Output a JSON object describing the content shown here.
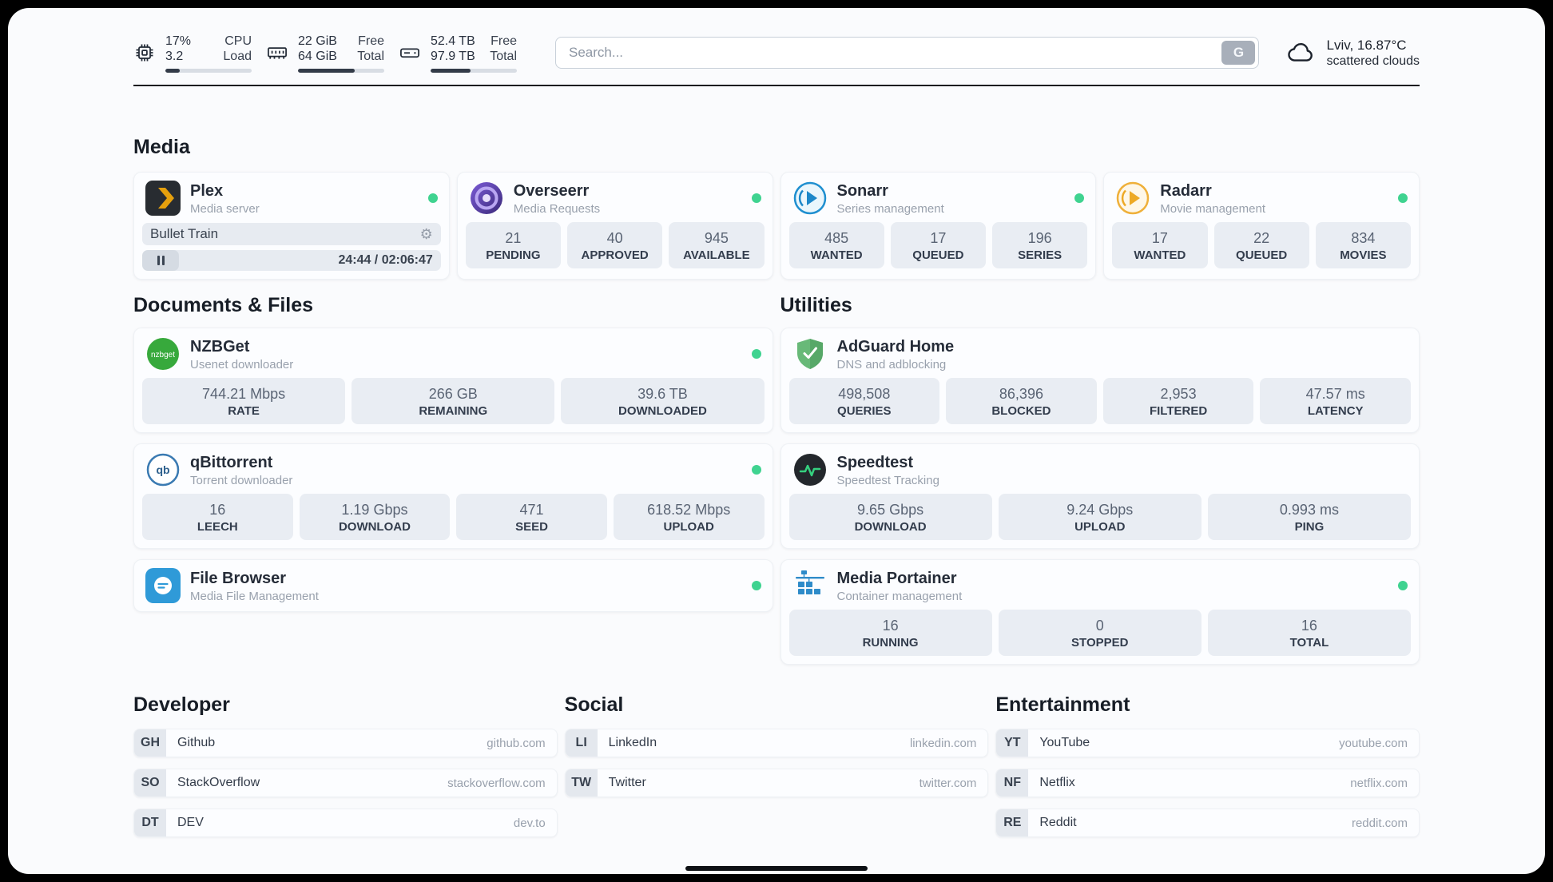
{
  "header": {
    "cpu": {
      "value1": "17%",
      "value2": "3.2",
      "label1": "CPU",
      "label2": "Load",
      "percent": 17
    },
    "ram": {
      "value1": "22 GiB",
      "value2": "64 GiB",
      "label1": "Free",
      "label2": "Total",
      "percent": 66
    },
    "disk": {
      "value1": "52.4 TB",
      "value2": "97.9 TB",
      "label1": "Free",
      "label2": "Total",
      "percent": 46
    },
    "search": {
      "placeholder": "Search...",
      "button_label": "G"
    },
    "weather": {
      "location_temp": "Lviv, 16.87°C",
      "condition": "scattered clouds"
    }
  },
  "media": {
    "title": "Media",
    "plex": {
      "name": "Plex",
      "sub": "Media server",
      "now_playing": "Bullet Train",
      "time": "24:44 / 02:06:47",
      "progress": 19.5
    },
    "apps": [
      {
        "name": "Overseerr",
        "sub": "Media Requests",
        "stats": [
          {
            "value": "21",
            "label": "PENDING"
          },
          {
            "value": "40",
            "label": "APPROVED"
          },
          {
            "value": "945",
            "label": "AVAILABLE"
          }
        ]
      },
      {
        "name": "Sonarr",
        "sub": "Series management",
        "stats": [
          {
            "value": "485",
            "label": "WANTED"
          },
          {
            "value": "17",
            "label": "QUEUED"
          },
          {
            "value": "196",
            "label": "SERIES"
          }
        ]
      },
      {
        "name": "Radarr",
        "sub": "Movie management",
        "stats": [
          {
            "value": "17",
            "label": "WANTED"
          },
          {
            "value": "22",
            "label": "QUEUED"
          },
          {
            "value": "834",
            "label": "MOVIES"
          }
        ]
      }
    ]
  },
  "documents": {
    "title": "Documents & Files",
    "nzbget": {
      "name": "NZBGet",
      "sub": "Usenet downloader",
      "stats": [
        {
          "value": "744.21 Mbps",
          "label": "RATE"
        },
        {
          "value": "266 GB",
          "label": "REMAINING"
        },
        {
          "value": "39.6 TB",
          "label": "DOWNLOADED"
        }
      ]
    },
    "qbittorrent": {
      "name": "qBittorrent",
      "sub": "Torrent downloader",
      "stats": [
        {
          "value": "16",
          "label": "LEECH"
        },
        {
          "value": "1.19 Gbps",
          "label": "DOWNLOAD"
        },
        {
          "value": "471",
          "label": "SEED"
        },
        {
          "value": "618.52 Mbps",
          "label": "UPLOAD"
        }
      ]
    },
    "filebrowser": {
      "name": "File Browser",
      "sub": "Media File Management"
    }
  },
  "utilities": {
    "title": "Utilities",
    "adguard": {
      "name": "AdGuard Home",
      "sub": "DNS and adblocking",
      "stats": [
        {
          "value": "498,508",
          "label": "QUERIES"
        },
        {
          "value": "86,396",
          "label": "BLOCKED"
        },
        {
          "value": "2,953",
          "label": "FILTERED"
        },
        {
          "value": "47.57 ms",
          "label": "LATENCY"
        }
      ]
    },
    "speedtest": {
      "name": "Speedtest",
      "sub": "Speedtest Tracking",
      "stats": [
        {
          "value": "9.65 Gbps",
          "label": "DOWNLOAD"
        },
        {
          "value": "9.24 Gbps",
          "label": "UPLOAD"
        },
        {
          "value": "0.993 ms",
          "label": "PING"
        }
      ]
    },
    "portainer": {
      "name": "Media Portainer",
      "sub": "Container management",
      "stats": [
        {
          "value": "16",
          "label": "RUNNING"
        },
        {
          "value": "0",
          "label": "STOPPED"
        },
        {
          "value": "16",
          "label": "TOTAL"
        }
      ]
    }
  },
  "bookmarks": [
    {
      "title": "Developer",
      "items": [
        {
          "abbr": "GH",
          "name": "Github",
          "domain": "github.com"
        },
        {
          "abbr": "SO",
          "name": "StackOverflow",
          "domain": "stackoverflow.com"
        },
        {
          "abbr": "DT",
          "name": "DEV",
          "domain": "dev.to"
        }
      ]
    },
    {
      "title": "Social",
      "items": [
        {
          "abbr": "LI",
          "name": "LinkedIn",
          "domain": "linkedin.com"
        },
        {
          "abbr": "TW",
          "name": "Twitter",
          "domain": "twitter.com"
        }
      ]
    },
    {
      "title": "Entertainment",
      "items": [
        {
          "abbr": "YT",
          "name": "YouTube",
          "domain": "youtube.com"
        },
        {
          "abbr": "NF",
          "name": "Netflix",
          "domain": "netflix.com"
        },
        {
          "abbr": "RE",
          "name": "Reddit",
          "domain": "reddit.com"
        }
      ]
    }
  ],
  "colors": {
    "accent_green": "#3fd390",
    "bar_fill": "#333b48"
  }
}
